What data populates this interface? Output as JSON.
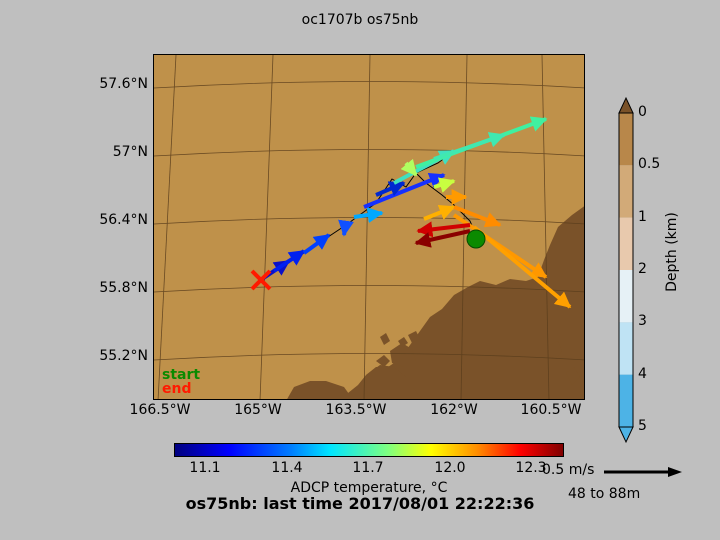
{
  "title": "oc1707b os75nb",
  "map": {
    "lat_labels": [
      "57.6°N",
      "57°N",
      "56.4°N",
      "55.8°N",
      "55.2°N"
    ],
    "lon_labels": [
      "166.5°W",
      "165°W",
      "163.5°W",
      "162°W",
      "160.5°W"
    ],
    "legend_start": "start",
    "legend_end": "end",
    "ocean_color": "#bf914a",
    "land_color": "#7a5229",
    "start_marker_color": "#0b8a00",
    "end_marker_color": "#ff1a00"
  },
  "temperature_colorbar": {
    "ticks": [
      "11.1",
      "11.4",
      "11.7",
      "12.0",
      "12.3"
    ],
    "label": "ADCP temperature, °C"
  },
  "depth_colorbar": {
    "ticks": [
      "0",
      "0.5",
      "1",
      "2",
      "3",
      "4",
      "5"
    ],
    "label": "Depth (km)",
    "colors": [
      "#b8874a",
      "#d2aa78",
      "#e8c9ad",
      "#e6f1f6",
      "#bfe3f4",
      "#8fd4f5",
      "#4db3e6"
    ]
  },
  "scale": {
    "speed": "0.5 m/s",
    "depth_range": "48 to 88m"
  },
  "bottom_caption": "os75nb: last time 2017/08/01 22:22:36"
}
